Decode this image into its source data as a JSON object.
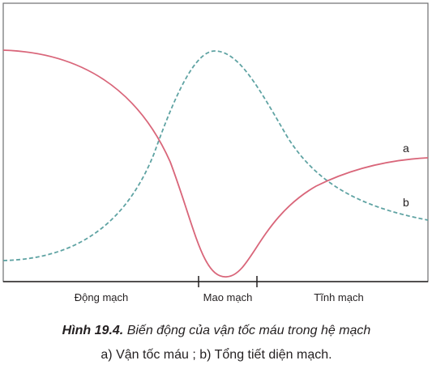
{
  "curve_labels": [
    "a",
    "b"
  ],
  "regions": [
    "Động mạch",
    "Mao mạch",
    "Tĩnh mạch"
  ],
  "caption": {
    "number": "Hình 19.4.",
    "title": "Biến động của vận tốc máu trong hệ mạch",
    "legend": "a)  Vận tốc máu ; b) Tổng tiết diện mạch."
  }
}
